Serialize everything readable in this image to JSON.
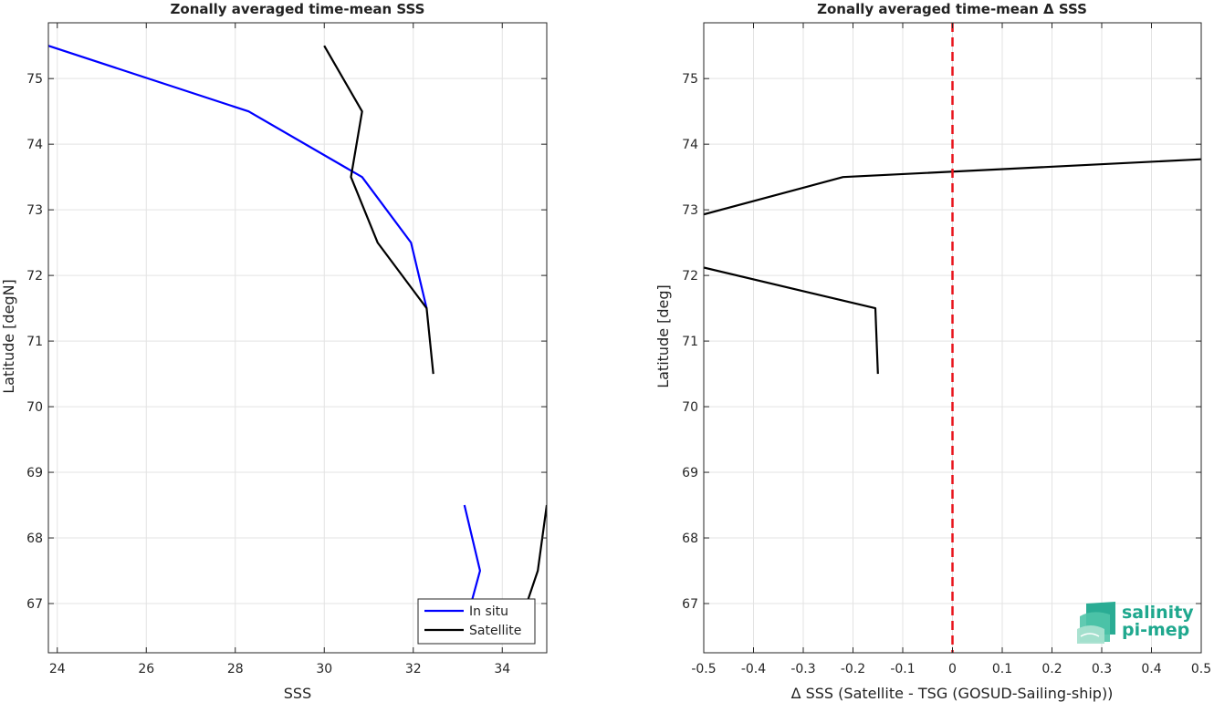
{
  "chart_data": [
    {
      "type": "line",
      "title": "Zonally averaged time-mean SSS",
      "xlabel": "SSS",
      "ylabel": "Latitude [degN]",
      "xlim": [
        23.8,
        35.0
      ],
      "ylim": [
        66.25,
        75.85
      ],
      "xticks": [
        24,
        26,
        28,
        30,
        32,
        34
      ],
      "yticks": [
        67,
        68,
        69,
        70,
        71,
        72,
        73,
        74,
        75
      ],
      "grid": true,
      "legend_position": "bottom-right",
      "series": [
        {
          "name": "In situ",
          "color": "#0000ff",
          "segments": [
            [
              [
                23.8,
                75.5
              ],
              [
                28.3,
                74.5
              ],
              [
                30.85,
                73.5
              ],
              [
                31.95,
                72.5
              ],
              [
                32.3,
                71.5
              ]
            ],
            [
              [
                33.15,
                68.5
              ],
              [
                33.5,
                67.5
              ],
              [
                33.3,
                67.0
              ]
            ]
          ]
        },
        {
          "name": "Satellite",
          "color": "#000000",
          "segments": [
            [
              [
                30.0,
                75.5
              ],
              [
                30.85,
                74.5
              ],
              [
                30.6,
                73.5
              ],
              [
                31.2,
                72.5
              ],
              [
                32.3,
                71.5
              ],
              [
                32.45,
                70.5
              ]
            ],
            [
              [
                35.0,
                68.5
              ],
              [
                34.8,
                67.5
              ],
              [
                34.5,
                66.9
              ]
            ]
          ]
        }
      ]
    },
    {
      "type": "line",
      "title": "Zonally averaged time-mean Δ SSS",
      "xlabel": "Δ SSS (Satellite - TSG (GOSUD-Sailing-ship))",
      "ylabel": "Latitude [deg]",
      "xlim": [
        -0.5,
        0.5
      ],
      "ylim": [
        66.25,
        75.85
      ],
      "xticks": [
        -0.5,
        -0.4,
        -0.3,
        -0.2,
        -0.1,
        0,
        0.1,
        0.2,
        0.3,
        0.4,
        0.5
      ],
      "yticks": [
        67,
        68,
        69,
        70,
        71,
        72,
        73,
        74,
        75
      ],
      "grid": true,
      "reference_line": {
        "x": 0,
        "color": "#e8141c",
        "style": "dashed"
      },
      "series": [
        {
          "color": "#000000",
          "segments": [
            [
              [
                -0.5,
                72.93
              ],
              [
                -0.22,
                73.5
              ],
              [
                0.5,
                73.77
              ]
            ],
            [
              [
                -0.5,
                72.12
              ],
              [
                -0.155,
                71.5
              ],
              [
                -0.15,
                70.5
              ]
            ]
          ]
        }
      ]
    }
  ],
  "logo": {
    "line1": "salinity",
    "line2": "pi-mep",
    "color": "#1fa88e"
  }
}
